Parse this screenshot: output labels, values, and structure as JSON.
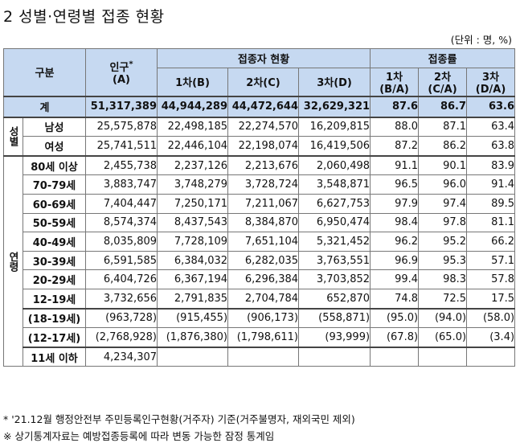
{
  "title": "2 성별·연령별 접종 현황",
  "unit": "(단위 : 명, %)",
  "header": {
    "category": "구분",
    "population": "인구",
    "population_mark": "*",
    "population_sub": "(A)",
    "vaccinated_group": "접종자 현황",
    "rate_group": "접종률",
    "dose1": "1차(B)",
    "dose2": "2차(C)",
    "dose3": "3차(D)",
    "rate1a": "1차",
    "rate1b": "(B/A)",
    "rate2a": "2차",
    "rate2b": "(C/A)",
    "rate3a": "3차",
    "rate3b": "(D/A)"
  },
  "total": {
    "label": "계",
    "pop": "51,317,389",
    "d1": "44,944,289",
    "d2": "44,472,644",
    "d3": "32,629,321",
    "r1": "87.6",
    "r2": "86.7",
    "r3": "63.6"
  },
  "gender_label": "성별",
  "gender_rows": [
    {
      "label": "남성",
      "pop": "25,575,878",
      "d1": "22,498,185",
      "d2": "22,274,570",
      "d3": "16,209,815",
      "r1": "88.0",
      "r2": "87.1",
      "r3": "63.4"
    },
    {
      "label": "여성",
      "pop": "25,741,511",
      "d1": "22,446,104",
      "d2": "22,198,074",
      "d3": "16,419,506",
      "r1": "87.2",
      "r2": "86.2",
      "r3": "63.8"
    }
  ],
  "age_label": "연령",
  "age_rows": [
    {
      "label": "80세 이상",
      "pop": "2,455,738",
      "d1": "2,237,126",
      "d2": "2,213,676",
      "d3": "2,060,498",
      "r1": "91.1",
      "r2": "90.1",
      "r3": "83.9"
    },
    {
      "label": "70-79세",
      "pop": "3,883,747",
      "d1": "3,748,279",
      "d2": "3,728,724",
      "d3": "3,548,871",
      "r1": "96.5",
      "r2": "96.0",
      "r3": "91.4"
    },
    {
      "label": "60-69세",
      "pop": "7,404,447",
      "d1": "7,250,171",
      "d2": "7,211,067",
      "d3": "6,627,753",
      "r1": "97.9",
      "r2": "97.4",
      "r3": "89.5"
    },
    {
      "label": "50-59세",
      "pop": "8,574,374",
      "d1": "8,437,543",
      "d2": "8,384,870",
      "d3": "6,950,474",
      "r1": "98.4",
      "r2": "97.8",
      "r3": "81.1"
    },
    {
      "label": "40-49세",
      "pop": "8,035,809",
      "d1": "7,728,109",
      "d2": "7,651,104",
      "d3": "5,321,452",
      "r1": "96.2",
      "r2": "95.2",
      "r3": "66.2"
    },
    {
      "label": "30-39세",
      "pop": "6,591,585",
      "d1": "6,384,032",
      "d2": "6,282,035",
      "d3": "3,763,551",
      "r1": "96.9",
      "r2": "95.3",
      "r3": "57.1"
    },
    {
      "label": "20-29세",
      "pop": "6,404,726",
      "d1": "6,367,194",
      "d2": "6,296,384",
      "d3": "3,703,852",
      "r1": "99.4",
      "r2": "98.3",
      "r3": "57.8"
    },
    {
      "label": "12-19세",
      "pop": "3,732,656",
      "d1": "2,791,835",
      "d2": "2,704,784",
      "d3": "652,870",
      "r1": "74.8",
      "r2": "72.5",
      "r3": "17.5"
    },
    {
      "label": "(18-19세)",
      "pop": "(963,728)",
      "d1": "(915,455)",
      "d2": "(906,173)",
      "d3": "(558,871)",
      "r1": "(95.0)",
      "r2": "(94.0)",
      "r3": "(58.0)"
    },
    {
      "label": "(12-17세)",
      "pop": "(2,768,928)",
      "d1": "(1,876,380)",
      "d2": "(1,798,611)",
      "d3": "(93,999)",
      "r1": "(67.8)",
      "r2": "(65.0)",
      "r3": "(3.4)"
    },
    {
      "label": "11세 이하",
      "pop": "4,234,307",
      "d1": "",
      "d2": "",
      "d3": "",
      "r1": "",
      "r2": "",
      "r3": ""
    }
  ],
  "footnotes": [
    "* '21.12월 행정안전부 주민등록인구현황(거주자) 기준(거주불명자, 재외국민 제외)",
    "※ 상기통계자료는 예방접종등록에 따라 변동 가능한 잠정 통계임"
  ]
}
